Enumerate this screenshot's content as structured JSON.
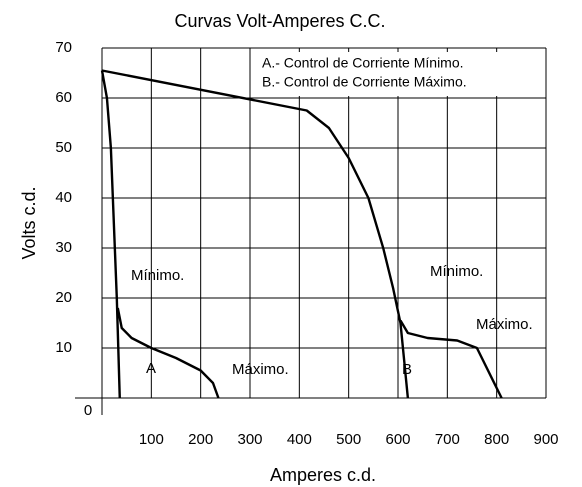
{
  "chart_data": {
    "type": "line",
    "title": "Curvas Volt-Amperes C.C.",
    "xlabel": "Amperes c.d.",
    "ylabel": "Volts c.d.",
    "legend_text": [
      "A.- Control de Corriente Mínimo.",
      "B.- Control de Corriente Máximo."
    ],
    "annotations": [
      "Mínimo.",
      "A",
      "Máximo.",
      "B",
      "Mínimo.",
      "Máximo."
    ],
    "xlim": [
      0,
      900
    ],
    "xticks": [
      100,
      200,
      300,
      400,
      500,
      600,
      700,
      800,
      900
    ],
    "ylim": [
      0,
      70
    ],
    "yticks": [
      0,
      10,
      20,
      30,
      40,
      50,
      60,
      70
    ],
    "grid": true,
    "color": "#000000",
    "series": [
      {
        "x": [
          0,
          10,
          18,
          22,
          26,
          30,
          33,
          36
        ],
        "values": [
          65.5,
          60,
          50,
          40,
          30,
          20,
          10,
          0
        ]
      },
      {
        "x": [
          32,
          40,
          60,
          100,
          150,
          200,
          225,
          236
        ],
        "values": [
          18,
          14,
          12,
          10,
          8,
          5.5,
          3,
          0
        ]
      },
      {
        "x": [
          0,
          415,
          460,
          500,
          540,
          570,
          590,
          605,
          612,
          620
        ],
        "values": [
          65.5,
          57.5,
          54,
          48,
          40,
          30,
          22,
          15,
          8,
          0
        ]
      },
      {
        "x": [
          605,
          620,
          660,
          720,
          760,
          780,
          800,
          810
        ],
        "values": [
          15.5,
          13,
          12,
          11.5,
          10,
          6,
          2,
          0
        ]
      }
    ]
  }
}
